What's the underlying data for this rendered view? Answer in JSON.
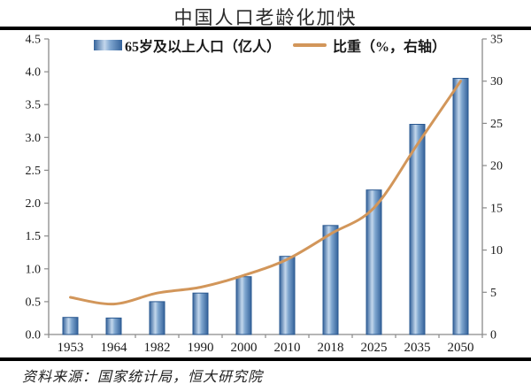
{
  "title": "中国人口老龄化加快",
  "source": "资料来源：国家统计局，恒大研究院",
  "legend": {
    "bar_label": "65岁及以上人口（亿人）",
    "line_label": "比重（%，右轴）"
  },
  "colors": {
    "bar_dark": "#35639b",
    "bar_mid": "#7fa6cf",
    "bar_light": "#c3d7ec",
    "bar_border": "#2a5890",
    "line": "#d2965a",
    "axis": "#8a8a8a",
    "rule": "#000000",
    "text": "#1a1a1a"
  },
  "chart_data": {
    "type": "bar",
    "subtype": "bar+line-combo",
    "title": "中国人口老龄化加快",
    "categories": [
      "1953",
      "1964",
      "1982",
      "1990",
      "2000",
      "2010",
      "2018",
      "2025",
      "2035",
      "2050"
    ],
    "series": [
      {
        "name": "65岁及以上人口（亿人）",
        "type": "bar",
        "axis": "left",
        "values": [
          0.26,
          0.25,
          0.5,
          0.63,
          0.88,
          1.19,
          1.66,
          2.2,
          3.2,
          3.9
        ]
      },
      {
        "name": "比重（%，右轴）",
        "type": "line",
        "axis": "right",
        "values": [
          4.4,
          3.6,
          4.9,
          5.6,
          7.0,
          8.9,
          11.9,
          15.0,
          22.5,
          30.0
        ]
      }
    ],
    "left_axis": {
      "min": 0,
      "max": 4.5,
      "step": 0.5,
      "tick_labels": [
        "0.0",
        "0.5",
        "1.0",
        "1.5",
        "2.0",
        "2.5",
        "3.0",
        "3.5",
        "4.0",
        "4.5"
      ]
    },
    "right_axis": {
      "min": 0,
      "max": 35,
      "step": 5,
      "tick_labels": [
        "0",
        "5",
        "10",
        "15",
        "20",
        "25",
        "30",
        "35"
      ]
    },
    "grid": false,
    "legend_position": "top"
  }
}
